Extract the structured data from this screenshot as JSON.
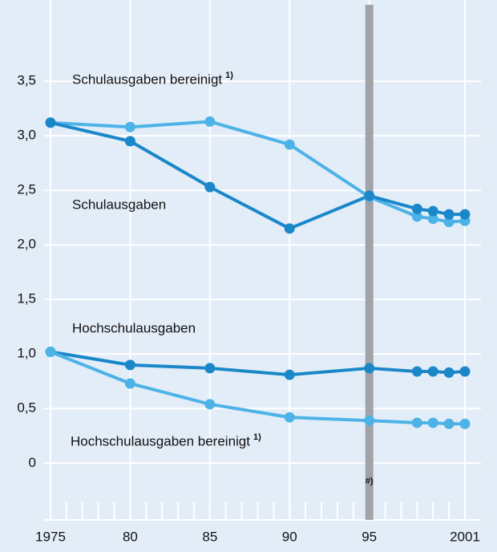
{
  "chart_data": {
    "type": "line",
    "x": [
      1975,
      1980,
      1985,
      1990,
      1995,
      1998,
      1999,
      2000,
      2001
    ],
    "series": [
      {
        "name": "Schulausgaben bereinigt",
        "note": "1)",
        "color": "#4db3e6",
        "values": [
          3.12,
          3.08,
          3.13,
          2.92,
          2.44,
          2.26,
          2.24,
          2.21,
          2.22
        ]
      },
      {
        "name": "Schulausgaben",
        "color": "#1a87c9",
        "values": [
          3.12,
          2.95,
          2.53,
          2.15,
          2.45,
          2.33,
          2.31,
          2.28,
          2.28
        ]
      },
      {
        "name": "Hochschulausgaben",
        "color": "#1a87c9",
        "values": [
          1.02,
          0.9,
          0.87,
          0.81,
          0.87,
          0.84,
          0.84,
          0.83,
          0.84
        ]
      },
      {
        "name": "Hochschulausgaben bereinigt",
        "note": "1)",
        "color": "#4db3e6",
        "values": [
          1.02,
          0.73,
          0.54,
          0.42,
          0.39,
          0.37,
          0.37,
          0.36,
          0.36
        ]
      }
    ],
    "xlim": [
      1975,
      2001
    ],
    "xticks": [
      1975,
      {
        "value": 1980,
        "label": "80"
      },
      {
        "value": 1985,
        "label": "85"
      },
      {
        "value": 1990,
        "label": "90"
      },
      {
        "value": 1995,
        "label": "95"
      },
      2001
    ],
    "ylim": [
      -0.52,
      4.2
    ],
    "yticks": [
      0,
      {
        "value": 0.5,
        "label": "0,5"
      },
      {
        "value": 1.0,
        "label": "1,0"
      },
      {
        "value": 1.5,
        "label": "1,5"
      },
      {
        "value": 2.0,
        "label": "2,0"
      },
      {
        "value": 2.5,
        "label": "2,5"
      },
      {
        "value": 3.0,
        "label": "3,0"
      },
      {
        "value": 3.5,
        "label": "3,5"
      }
    ],
    "vline": {
      "value": 1995,
      "label": "#)",
      "color": "#a0a4a8"
    },
    "grid": true
  }
}
